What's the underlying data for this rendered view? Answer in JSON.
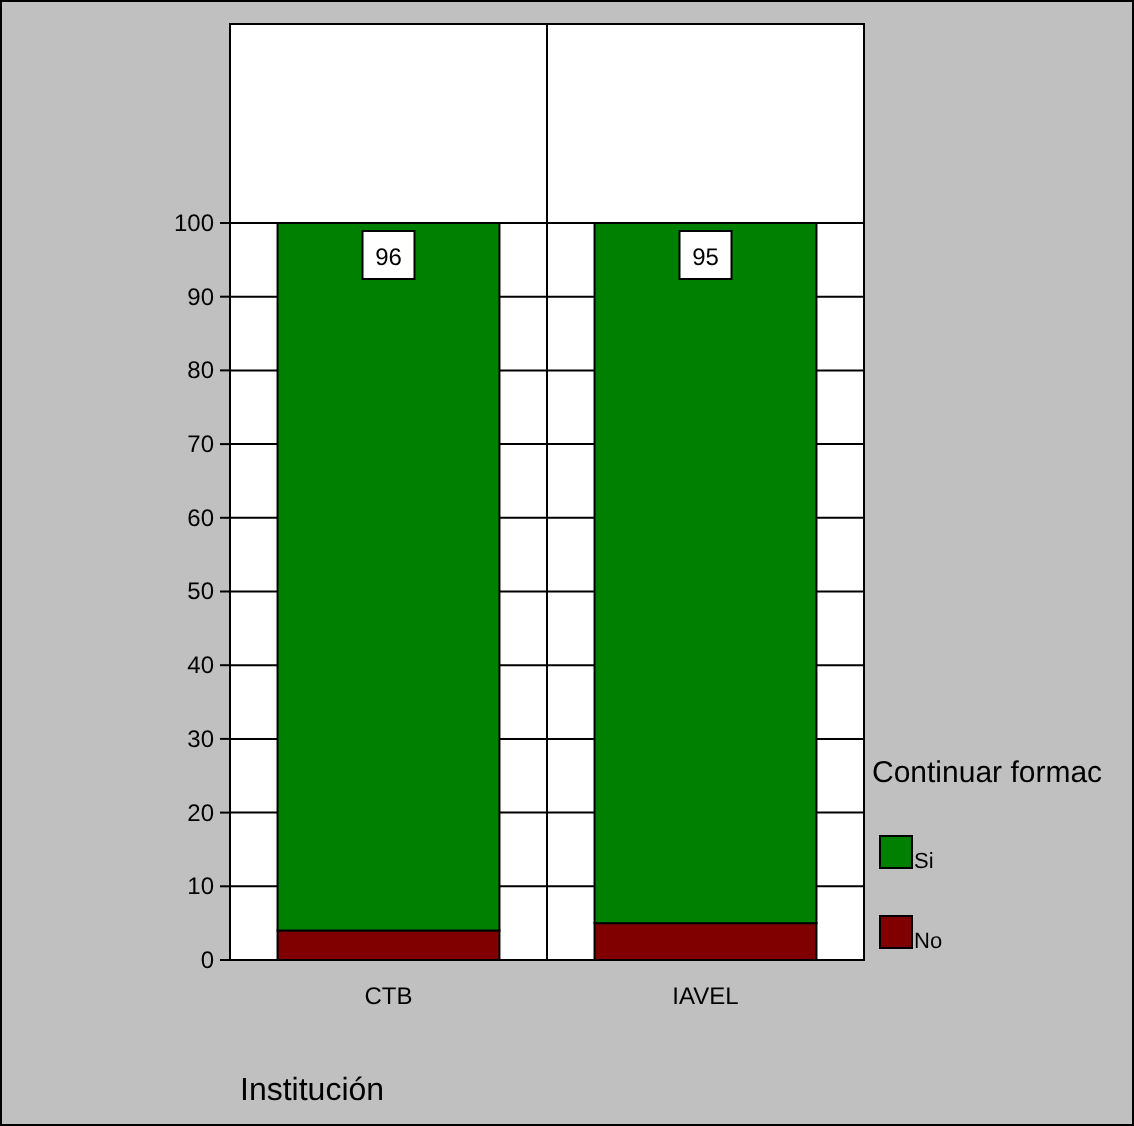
{
  "chart_data": {
    "type": "bar",
    "stacked": true,
    "categories": [
      "CTB",
      "IAVEL"
    ],
    "xlabel": "Institución",
    "legend_title": "Continuar formac",
    "legend": "right",
    "grid": "y",
    "ylim": [
      0,
      127
    ],
    "yticks": [
      0,
      10,
      20,
      30,
      40,
      50,
      60,
      70,
      80,
      90,
      100
    ],
    "series": [
      {
        "name": "No",
        "color": "#800000",
        "values": [
          4,
          5
        ]
      },
      {
        "name": "Si",
        "color": "#008000",
        "values": [
          96,
          95
        ],
        "value_labels": [
          "96",
          "95"
        ]
      }
    ]
  }
}
